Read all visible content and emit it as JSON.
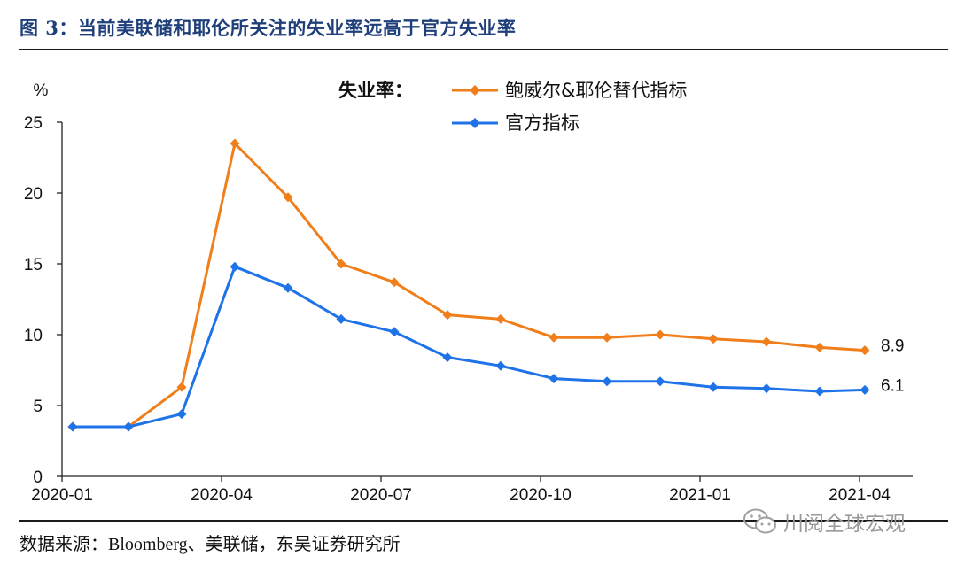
{
  "figure": {
    "title": "图 3：当前美联储和耶伦所关注的失业率远高于官方失业率",
    "source": "数据来源：Bloomberg、美联储，东吴证券研究所",
    "watermark": "川阅全球宏观"
  },
  "chart_data": {
    "type": "line",
    "unit_label": "%",
    "legend_title": "失业率：",
    "legend_position": "top-center",
    "grid": false,
    "x_tick_labels": [
      "2020-01",
      "2020-04",
      "2020-07",
      "2020-10",
      "2021-01",
      "2021-04"
    ],
    "x_tick_positions": [
      0,
      3,
      6,
      9,
      12,
      15
    ],
    "xlim": [
      0,
      16
    ],
    "ylim": [
      0,
      25
    ],
    "y_ticks": [
      0,
      5,
      10,
      15,
      20,
      25
    ],
    "x": [
      0.2,
      1.25,
      2.25,
      3.25,
      4.25,
      5.25,
      6.25,
      7.25,
      8.25,
      9.25,
      10.25,
      11.25,
      12.25,
      13.25,
      14.25,
      15.1
    ],
    "series": [
      {
        "name": "鲍威尔&耶伦替代指标",
        "color": "#f07f1b",
        "values": [
          3.5,
          3.5,
          6.3,
          23.5,
          19.7,
          15.0,
          13.7,
          11.4,
          11.1,
          9.8,
          9.8,
          10.0,
          9.7,
          9.5,
          9.1,
          8.9
        ],
        "end_label": "8.9"
      },
      {
        "name": "官方指标",
        "color": "#1f73e8",
        "values": [
          3.5,
          3.5,
          4.4,
          14.8,
          13.3,
          11.1,
          10.2,
          8.4,
          7.8,
          6.9,
          6.7,
          6.7,
          6.3,
          6.2,
          6.0,
          6.1
        ],
        "end_label": "6.1"
      }
    ]
  }
}
